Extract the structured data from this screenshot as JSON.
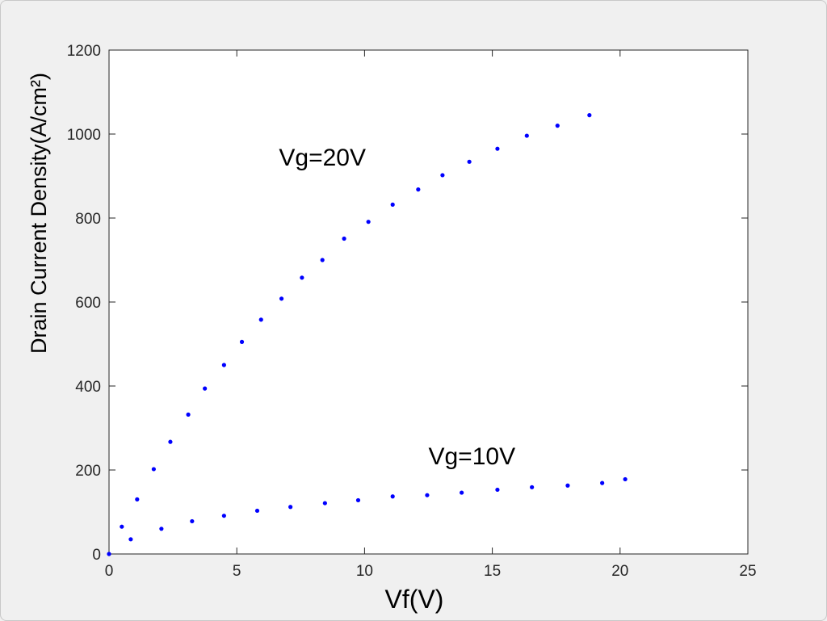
{
  "chart_data": {
    "type": "scatter",
    "xlabel": "Vf(V)",
    "ylabel": "Drain Current Density(A/cm²)",
    "xlim": [
      0,
      25
    ],
    "ylim": [
      0,
      1200
    ],
    "xticks": [
      0,
      5,
      10,
      15,
      20,
      25
    ],
    "yticks": [
      0,
      200,
      400,
      600,
      800,
      1000,
      1200
    ],
    "grid": false,
    "legend": "none",
    "series": [
      {
        "label_id": "vg20",
        "color": "#0000ff",
        "points": [
          [
            0,
            0
          ],
          [
            0.5,
            65
          ],
          [
            1.1,
            130
          ],
          [
            1.75,
            202
          ],
          [
            2.4,
            267
          ],
          [
            3.1,
            332
          ],
          [
            3.75,
            394
          ],
          [
            4.5,
            450
          ],
          [
            5.2,
            505
          ],
          [
            5.95,
            558
          ],
          [
            6.75,
            608
          ],
          [
            7.55,
            658
          ],
          [
            8.35,
            700
          ],
          [
            9.2,
            751
          ],
          [
            10.15,
            791
          ],
          [
            11.1,
            832
          ],
          [
            12.1,
            868
          ],
          [
            13.05,
            902
          ],
          [
            14.1,
            934
          ],
          [
            15.2,
            965
          ],
          [
            16.35,
            996
          ],
          [
            17.55,
            1020
          ],
          [
            18.8,
            1045
          ]
        ]
      },
      {
        "label_id": "vg10",
        "color": "#0000ff",
        "points": [
          [
            0.85,
            35
          ],
          [
            2.05,
            60
          ],
          [
            3.25,
            78
          ],
          [
            4.5,
            91
          ],
          [
            5.8,
            103
          ],
          [
            7.1,
            112
          ],
          [
            8.45,
            121
          ],
          [
            9.75,
            128
          ],
          [
            11.1,
            137
          ],
          [
            12.45,
            140
          ],
          [
            13.8,
            146
          ],
          [
            15.2,
            153
          ],
          [
            16.55,
            159
          ],
          [
            17.95,
            163
          ],
          [
            19.3,
            169
          ],
          [
            20.2,
            178
          ]
        ]
      }
    ],
    "annotations": [
      {
        "text": "Vg=20V",
        "x": 8.35,
        "y": 925
      },
      {
        "text": "Vg=10V",
        "x": 14.2,
        "y": 213
      }
    ]
  },
  "colors": {
    "marker": "#0000ff",
    "axis": "#262626",
    "plot_background": "#ffffff",
    "figure_background": "#f0f0f0"
  }
}
